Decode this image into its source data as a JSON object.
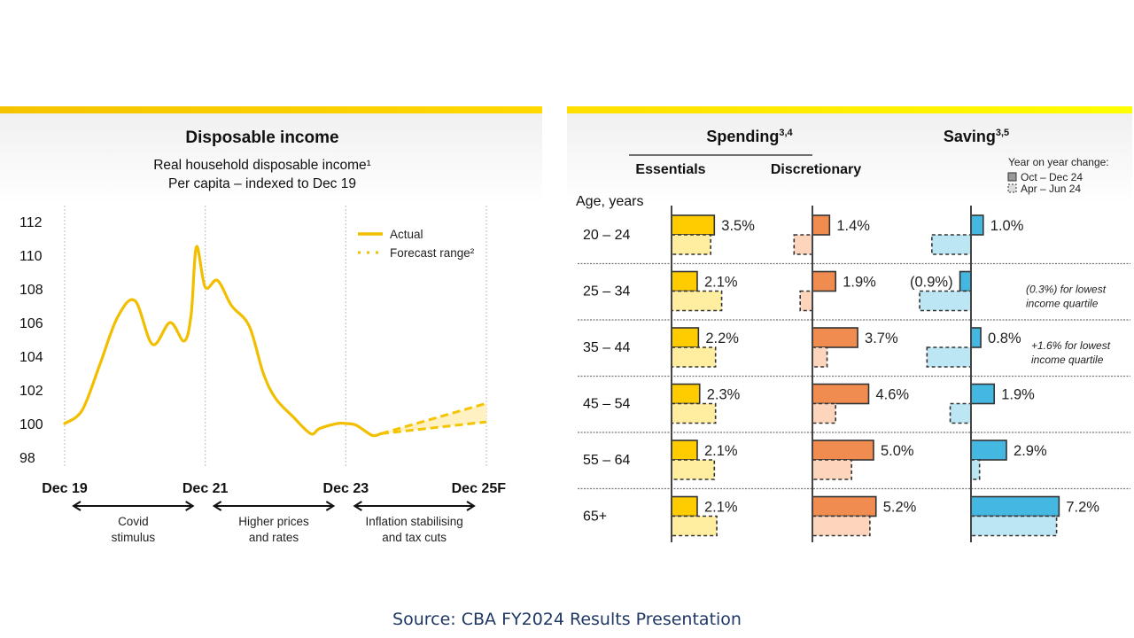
{
  "source": "Source: CBA FY2024 Results Presentation",
  "colors": {
    "accent_yellow": "#f5c400",
    "essentials": "#ffcc00",
    "essentials_light": "#ffeea0",
    "discretionary": "#f08c50",
    "discretionary_light": "#fdd5bd",
    "saving": "#44b8e0",
    "saving_light": "#bde6f5",
    "source_text": "#1f3864"
  },
  "chart_data": [
    {
      "type": "line",
      "title": "Disposable income",
      "subtitle_line1": "Real household disposable income¹",
      "subtitle_line2": "Per capita – indexed to Dec 19",
      "xlabel": "",
      "ylabel": "",
      "ylim": [
        98,
        112
      ],
      "yticks": [
        "112",
        "110",
        "108",
        "106",
        "104",
        "102",
        "100",
        "98"
      ],
      "ytick_values": [
        112,
        110,
        108,
        106,
        104,
        102,
        100,
        98
      ],
      "xticks": [
        "Dec 19",
        "Dec 21",
        "Dec 23",
        "Dec 25F"
      ],
      "xtick_values": [
        0,
        8,
        16,
        24
      ],
      "x_unit": "quarters since Dec 19",
      "grid": "vertical dotted at x ticks",
      "legend": {
        "position": "top-right",
        "entries": [
          "Actual",
          "Forecast range²"
        ]
      },
      "series": [
        {
          "name": "Actual",
          "x": [
            0,
            1,
            2,
            3,
            4,
            5,
            6,
            6.8,
            7.2,
            7.5,
            8,
            8.7,
            9.5,
            10.5,
            11.3,
            12,
            13,
            14,
            14.5,
            15.5,
            16,
            16.6,
            17.5,
            18
          ],
          "y": [
            100,
            100.8,
            103.5,
            106.3,
            107.3,
            104.7,
            106,
            104.9,
            106.5,
            110.5,
            108.1,
            108.5,
            107,
            105.8,
            103,
            101.5,
            100.4,
            99.4,
            99.7,
            100,
            100.0,
            99.9,
            99.3,
            99.4
          ]
        },
        {
          "name": "Forecast upper",
          "x": [
            18,
            24
          ],
          "y": [
            99.4,
            101.2
          ]
        },
        {
          "name": "Forecast lower",
          "x": [
            18,
            24
          ],
          "y": [
            99.4,
            100.1
          ]
        }
      ],
      "annotations": [
        {
          "from": "Dec 19",
          "to": "Dec 21",
          "label_line1": "Covid",
          "label_line2": "stimulus"
        },
        {
          "from": "Dec 21",
          "to": "Dec 23",
          "label_line1": "Higher prices",
          "label_line2": "and rates"
        },
        {
          "from": "Dec 23",
          "to": "Dec 25F",
          "label_line1": "Inflation stabilising",
          "label_line2": "and tax cuts"
        }
      ]
    },
    {
      "type": "bar",
      "orientation": "horizontal",
      "spending_title": "Spending",
      "spending_sup": "3,4",
      "saving_title": "Saving",
      "saving_sup": "3,5",
      "row_axis_label": "Age, years",
      "panels": [
        "Essentials",
        "Discretionary",
        "Saving"
      ],
      "legend": {
        "position": "top-right",
        "title": "Year on year change:",
        "entries": [
          "Oct – Dec 24",
          "Apr – Jun 24"
        ]
      },
      "categories": [
        "20 – 24",
        "25 – 34",
        "35 – 44",
        "45 – 54",
        "55 – 64",
        "65+"
      ],
      "unit": "%",
      "series": [
        {
          "panel": "Essentials",
          "name": "Oct – Dec 24",
          "values": [
            3.5,
            2.1,
            2.2,
            2.3,
            2.1,
            2.1
          ],
          "labels": [
            "3.5%",
            "2.1%",
            "2.2%",
            "2.3%",
            "2.1%",
            "2.1%"
          ]
        },
        {
          "panel": "Essentials",
          "name": "Apr – Jun 24",
          "values": [
            3.2,
            4.1,
            3.6,
            3.6,
            3.5,
            3.7
          ]
        },
        {
          "panel": "Discretionary",
          "name": "Oct – Dec 24",
          "values": [
            1.4,
            1.9,
            3.7,
            4.6,
            5.0,
            5.2
          ],
          "labels": [
            "1.4%",
            "1.9%",
            "3.7%",
            "4.6%",
            "5.0%",
            "5.2%"
          ]
        },
        {
          "panel": "Discretionary",
          "name": "Apr – Jun 24",
          "values": [
            -1.5,
            -1.0,
            1.2,
            1.9,
            3.2,
            4.7
          ]
        },
        {
          "panel": "Saving",
          "name": "Oct – Dec 24",
          "values": [
            1.0,
            -0.9,
            0.8,
            1.9,
            2.9,
            7.2
          ],
          "labels": [
            "1.0%",
            "(0.9%)",
            "0.8%",
            "1.9%",
            "2.9%",
            "7.2%"
          ]
        },
        {
          "panel": "Saving",
          "name": "Apr – Jun 24",
          "values": [
            -3.2,
            -4.2,
            -3.6,
            -1.7,
            0.7,
            7.0
          ]
        }
      ],
      "notes": [
        {
          "row": "25 – 34",
          "line1": "(0.3%) for lowest",
          "line2": "income quartile"
        },
        {
          "row": "35 – 44",
          "line1": "+1.6% for lowest",
          "line2": "income quartile"
        }
      ]
    }
  ]
}
